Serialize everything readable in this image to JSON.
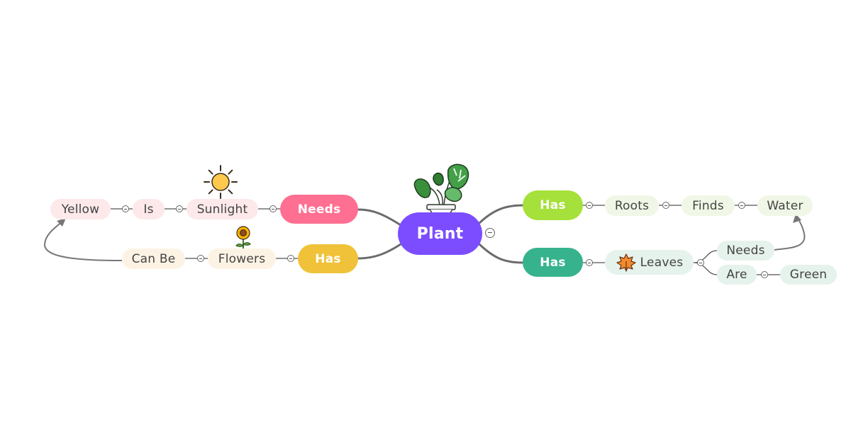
{
  "colors": {
    "root": "#7c4dff",
    "needs_main": "#ff6f91",
    "has_flowers_main": "#f0c23a",
    "has_roots_main": "#a6e03a",
    "has_leaves_main": "#36b38c",
    "pink_tint": "#fde8ea",
    "peach_tint": "#fdf3e4",
    "green_tint": "#f0f7e6",
    "teal_tint": "#e6f2ec",
    "line": "#666666"
  },
  "icons": {
    "root": "potted-plant-icon",
    "sunlight": "sun-icon",
    "flowers": "sunflower-icon",
    "leaves": "maple-leaf-icon"
  },
  "nodes": {
    "root": "Plant",
    "needs": "Needs",
    "sunlight": "Sunlight",
    "is": "Is",
    "yellow": "Yellow",
    "has_flowers": "Has",
    "flowers": "Flowers",
    "can_be": "Can Be",
    "has_roots": "Has",
    "roots": "Roots",
    "finds": "Finds",
    "water": "Water",
    "has_leaves": "Has",
    "leaves": "Leaves",
    "leaves_needs": "Needs",
    "are": "Are",
    "green": "Green"
  }
}
